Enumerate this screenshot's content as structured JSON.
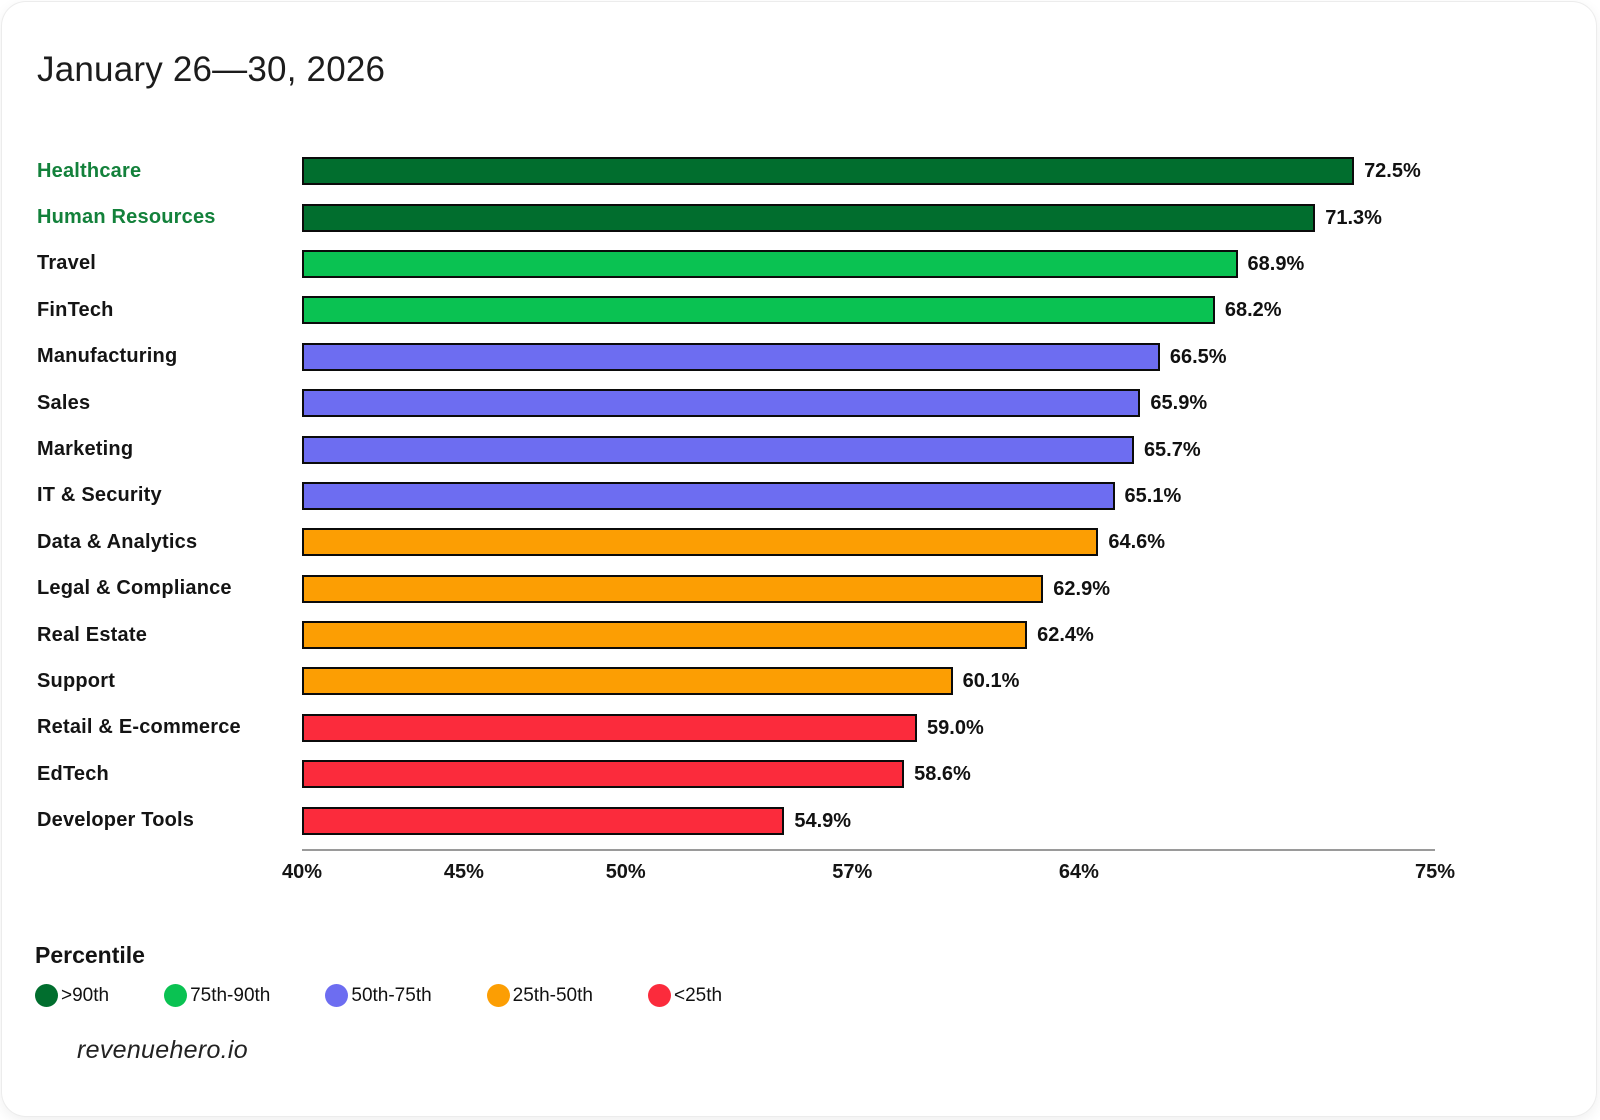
{
  "card": {
    "footer": "revenuehero.io"
  },
  "chart_data": {
    "type": "bar",
    "orientation": "horizontal",
    "title": "January 26—30, 2026",
    "categories": [
      "Healthcare",
      "Human Resources",
      "Travel",
      "FinTech",
      "Manufacturing",
      "Sales",
      "Marketing",
      "IT & Security",
      "Data & Analytics",
      "Legal & Compliance",
      "Real Estate",
      "Support",
      "Retail & E-commerce",
      "EdTech",
      "Developer Tools"
    ],
    "values": [
      72.5,
      71.3,
      68.9,
      68.2,
      66.5,
      65.9,
      65.7,
      65.1,
      64.6,
      62.9,
      62.4,
      60.1,
      59.0,
      58.6,
      54.9
    ],
    "value_labels": [
      "72.5%",
      "71.3%",
      "68.9%",
      "68.2%",
      "66.5%",
      "65.9%",
      "65.7%",
      "65.1%",
      "64.6%",
      "62.9%",
      "62.4%",
      "60.1%",
      "59.0%",
      "58.6%",
      "54.9%"
    ],
    "bands": [
      "gt90",
      "gt90",
      "p75_90",
      "p75_90",
      "p50_75",
      "p50_75",
      "p50_75",
      "p50_75",
      "p25_50",
      "p25_50",
      "p25_50",
      "p25_50",
      "lt25",
      "lt25",
      "lt25"
    ],
    "band_colors": {
      "gt90": "#016E2E",
      "p75_90": "#0AC252",
      "p50_75": "#6D6DF1",
      "p25_50": "#FC9E03",
      "lt25": "#FB2B3C"
    },
    "highlighted_categories": [
      "Healthcare",
      "Human Resources"
    ],
    "highlight_color": "#13813B",
    "xlim": [
      40,
      75
    ],
    "x_ticks": [
      {
        "value": 40,
        "label": "40%"
      },
      {
        "value": 45,
        "label": "45%"
      },
      {
        "value": 50,
        "label": "50%"
      },
      {
        "value": 57,
        "label": "57%"
      },
      {
        "value": 64,
        "label": "64%"
      },
      {
        "value": 75,
        "label": "75%"
      }
    ],
    "grid": false,
    "bar_border_color": "#0b0b0b",
    "legend": {
      "title": "Percentile",
      "position": "bottom",
      "items": [
        {
          "label": ">90th",
          "band": "gt90",
          "color": "#016E2E"
        },
        {
          "label": "75th-90th",
          "band": "p75_90",
          "color": "#0AC252"
        },
        {
          "label": "50th-75th",
          "band": "p50_75",
          "color": "#6D6DF1"
        },
        {
          "label": "25th-50th",
          "band": "p25_50",
          "color": "#FC9E03"
        },
        {
          "label": "<25th",
          "band": "lt25",
          "color": "#FB2B3C"
        }
      ]
    }
  }
}
